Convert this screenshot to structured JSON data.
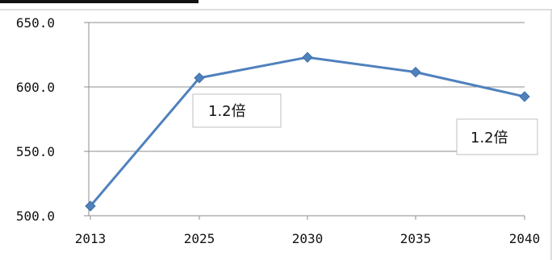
{
  "chart_data": {
    "type": "line",
    "title": "",
    "xlabel": "",
    "ylabel": "",
    "categories": [
      "2013",
      "2025",
      "2030",
      "2035",
      "2040"
    ],
    "series": [
      {
        "values": [
          507.5,
          607.0,
          623.0,
          611.5,
          592.5
        ]
      }
    ],
    "ylim": [
      500.0,
      650.0
    ],
    "y_ticks": [
      "650.0",
      "600.0",
      "550.0",
      "500.0"
    ],
    "grid": "horizontal",
    "legend": "none",
    "annotations": [
      "1.2倍",
      "1.2倍"
    ]
  },
  "colors": {
    "series_line": "#4f81bd",
    "gridline": "#8c8c8c",
    "axis": "#8c8c8c",
    "annotation_border": "#bfbfbf"
  }
}
